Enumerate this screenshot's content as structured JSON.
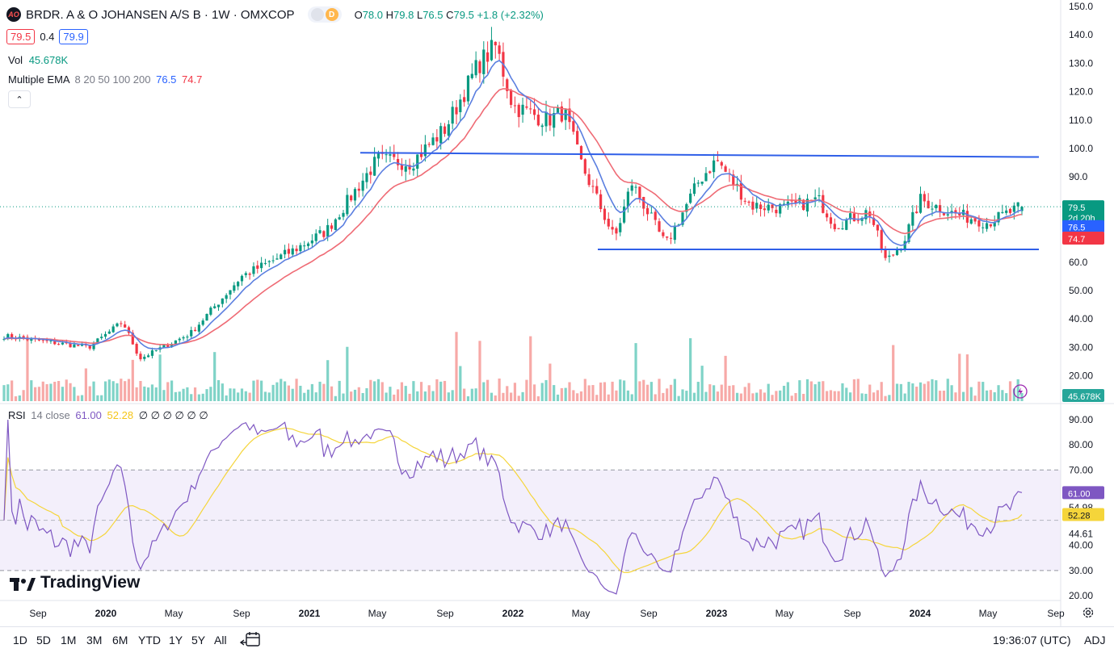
{
  "header": {
    "title": "BRDR. A & O JOHANSEN A/S B · 1W · OMXCOP",
    "logo_text": "AO",
    "d_badge": "D",
    "o_label": "O",
    "o_value": "78.0",
    "h_label": "H",
    "h_value": "79.8",
    "l_label": "L",
    "l_value": "76.5",
    "c_label": "C",
    "c_value": "79.5",
    "change": "+1.8 (+2.32%)"
  },
  "bid_ask": {
    "bid": "79.5",
    "spread": "0.4",
    "ask": "79.9"
  },
  "volume_legend": {
    "label": "Vol",
    "value": "45.678K"
  },
  "ema_legend": {
    "label": "Multiple EMA",
    "params": "8 20 50 100 200",
    "v1": "76.5",
    "v2": "74.7"
  },
  "collapse_icon": "chevron-up-icon",
  "rsi_legend": {
    "label": "RSI",
    "params": "14 close",
    "rsi": "61.00",
    "ma": "52.28",
    "empty": "∅ ∅ ∅ ∅ ∅ ∅"
  },
  "price_axis": [
    "150.0",
    "140.0",
    "130.0",
    "120.0",
    "110.0",
    "100.0",
    "90.0",
    "60.0",
    "50.00",
    "40.00",
    "30.00",
    "20.00"
  ],
  "rsi_axis": [
    "90.00",
    "80.00",
    "70.00",
    "30.00",
    "20.00"
  ],
  "rsi_levels": [
    "54.98",
    "44.61",
    "40.00"
  ],
  "price_tags": {
    "last": "79.5",
    "countdown": "2d 20h",
    "ema_fast": "76.5",
    "ema_slow": "74.7",
    "volume": "45.678K"
  },
  "rsi_tags": {
    "rsi": "61.00",
    "ma": "52.28"
  },
  "time_axis": [
    {
      "label": "Sep",
      "bold": false
    },
    {
      "label": "2020",
      "bold": true
    },
    {
      "label": "May",
      "bold": false
    },
    {
      "label": "Sep",
      "bold": false
    },
    {
      "label": "2021",
      "bold": true
    },
    {
      "label": "May",
      "bold": false
    },
    {
      "label": "Sep",
      "bold": false
    },
    {
      "label": "2022",
      "bold": true
    },
    {
      "label": "May",
      "bold": false
    },
    {
      "label": "Sep",
      "bold": false
    },
    {
      "label": "2023",
      "bold": true
    },
    {
      "label": "May",
      "bold": false
    },
    {
      "label": "Sep",
      "bold": false
    },
    {
      "label": "2024",
      "bold": true
    },
    {
      "label": "May",
      "bold": false
    },
    {
      "label": "Sep",
      "bold": false
    }
  ],
  "branding": "TradingView",
  "ranges": [
    "1D",
    "5D",
    "1M",
    "3M",
    "6M",
    "YTD",
    "1Y",
    "5Y",
    "All"
  ],
  "clock": "19:36:07 (UTC)",
  "adj": "ADJ",
  "colors": {
    "up": "#089981",
    "down": "#f23645",
    "ema_fast": "#5b7fe0",
    "ema_slow": "#ef6b75",
    "trend": "#2f5fe8",
    "rsi": "#7e57c2",
    "rsi_ma": "#f5d53a"
  },
  "chart_data": {
    "type": "candlestick",
    "timeframe": "1W",
    "ylim": [
      20,
      150
    ],
    "anchors": [
      {
        "date": "2019-07",
        "price": 34
      },
      {
        "date": "2019-12",
        "price": 30
      },
      {
        "date": "2020-02",
        "price": 39
      },
      {
        "date": "2020-03",
        "price": 26
      },
      {
        "date": "2020-06",
        "price": 35
      },
      {
        "date": "2020-09",
        "price": 55
      },
      {
        "date": "2020-12",
        "price": 64
      },
      {
        "date": "2021-02",
        "price": 71
      },
      {
        "date": "2021-05",
        "price": 96
      },
      {
        "date": "2021-07",
        "price": 95
      },
      {
        "date": "2021-09",
        "price": 107
      },
      {
        "date": "2021-11",
        "price": 130
      },
      {
        "date": "2021-12",
        "price": 136
      },
      {
        "date": "2022-01",
        "price": 115
      },
      {
        "date": "2022-03",
        "price": 110
      },
      {
        "date": "2022-04",
        "price": 113
      },
      {
        "date": "2022-05",
        "price": 95
      },
      {
        "date": "2022-07",
        "price": 68
      },
      {
        "date": "2022-08",
        "price": 88
      },
      {
        "date": "2022-10",
        "price": 66
      },
      {
        "date": "2022-12",
        "price": 89
      },
      {
        "date": "2023-01",
        "price": 96
      },
      {
        "date": "2023-03",
        "price": 80
      },
      {
        "date": "2023-05",
        "price": 79
      },
      {
        "date": "2023-07",
        "price": 82
      },
      {
        "date": "2023-08",
        "price": 73
      },
      {
        "date": "2023-10",
        "price": 78
      },
      {
        "date": "2023-11",
        "price": 60
      },
      {
        "date": "2023-12",
        "price": 67
      },
      {
        "date": "2024-01",
        "price": 82
      },
      {
        "date": "2024-03",
        "price": 77
      },
      {
        "date": "2024-05",
        "price": 74
      },
      {
        "date": "2024-07",
        "price": 79.5
      }
    ],
    "trendlines": [
      {
        "from": {
          "date": "2021-04",
          "price": 98.5
        },
        "to": {
          "date": "2024-08",
          "price": 97
        }
      },
      {
        "from": {
          "date": "2022-06",
          "price": 64.5
        },
        "to": {
          "date": "2024-08",
          "price": 64.5
        }
      }
    ],
    "indicators": {
      "ema": [
        {
          "period": 8,
          "last": 76.5
        },
        {
          "period": 20,
          "last": 74.7
        }
      ],
      "volume_last": "45.678K",
      "rsi": {
        "period": 14,
        "last": 61.0,
        "ma_last": 52.28,
        "upper": 70,
        "lower": 30
      }
    }
  }
}
